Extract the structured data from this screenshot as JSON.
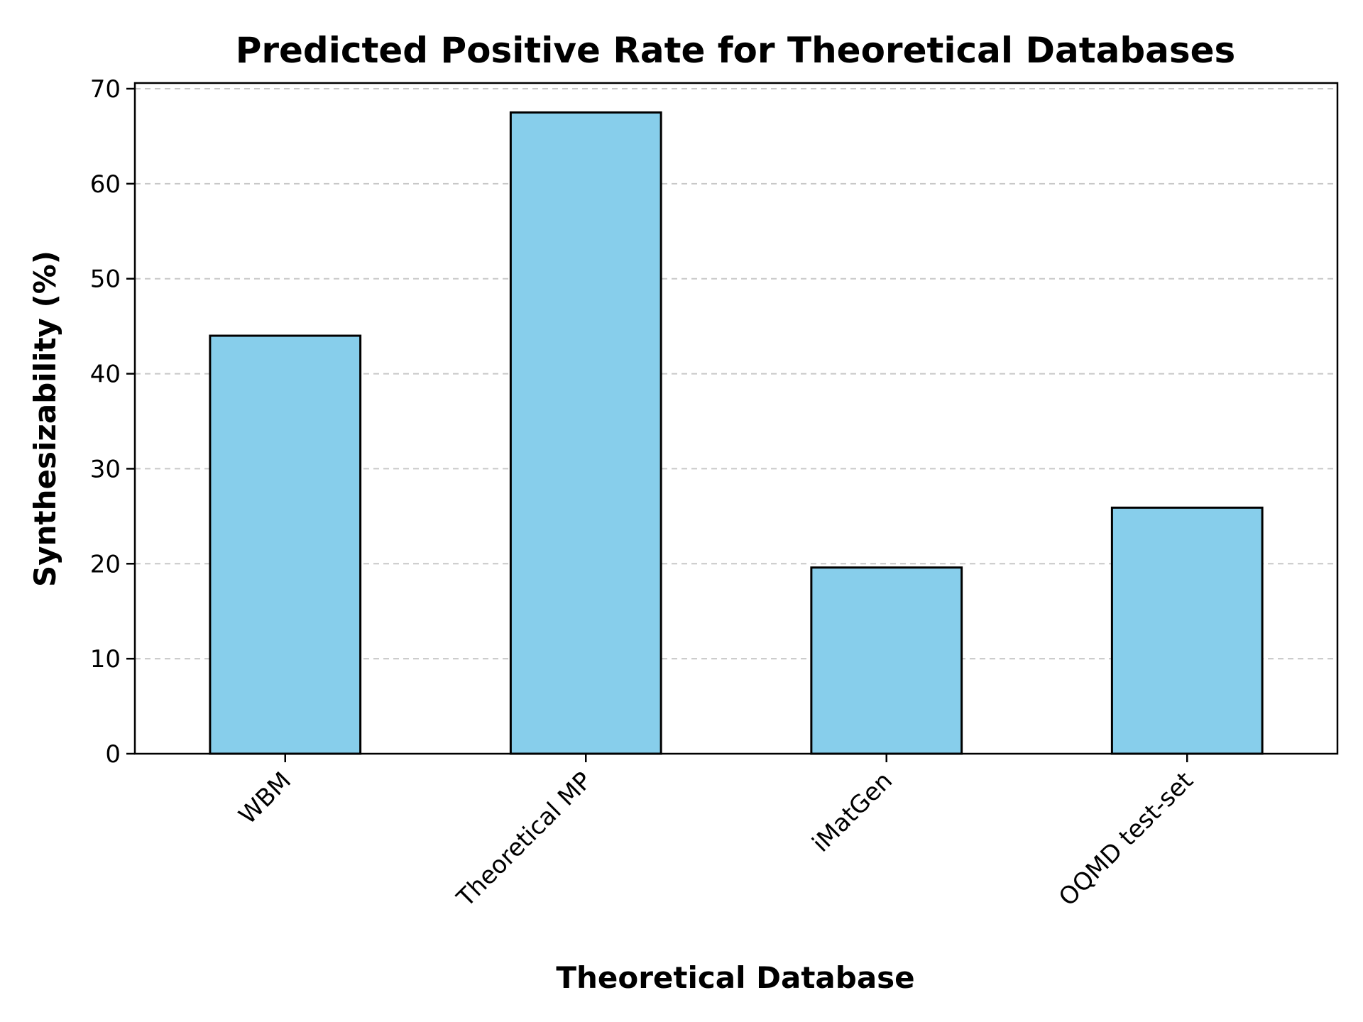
{
  "chart_data": {
    "type": "bar",
    "title": "Predicted Positive Rate for Theoretical Databases",
    "xlabel": "Theoretical Database",
    "ylabel": "Synthesizability (%)",
    "categories": [
      "WBM",
      "Theoretical MP",
      "iMatGen",
      "OQMD test-set"
    ],
    "values": [
      44.0,
      67.5,
      19.6,
      25.9
    ],
    "ylim": [
      0,
      70
    ],
    "yticks": [
      0,
      10,
      20,
      30,
      40,
      50,
      60,
      70
    ],
    "ytick_labels": [
      "0",
      "10",
      "20",
      "30",
      "40",
      "50",
      "60",
      "70"
    ],
    "grid": "y-dashed",
    "bar_color": "#87CEEB",
    "bar_edge_color": "#000000",
    "grid_color": "#c8c8c8",
    "xtick_rotation": 45
  }
}
